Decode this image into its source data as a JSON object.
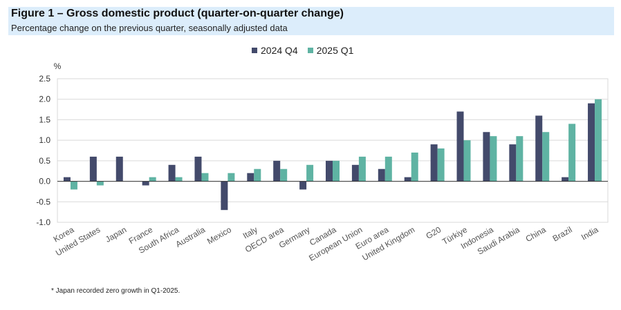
{
  "figure": {
    "title": "Figure 1 – Gross domestic product (quarter-on-quarter change)",
    "subtitle": "Percentage change on the previous quarter, seasonally adjusted data",
    "footnote": "* Japan recorded zero growth in Q1-2025."
  },
  "colors": {
    "series1": "#434a6b",
    "series2": "#5fb3a3",
    "grid": "#d9d9d9",
    "axis": "#333333",
    "header_bg": "#dcedfb"
  },
  "chart_data": {
    "type": "bar",
    "title": "Gross domestic product (quarter-on-quarter change)",
    "ylabel": "%",
    "xlabel": "",
    "ylim": [
      -1.0,
      2.5
    ],
    "yticks": [
      2.5,
      2.0,
      1.5,
      1.0,
      0.5,
      0.0,
      -0.5,
      -1.0
    ],
    "ytick_labels": [
      "2.5",
      "2.0",
      "1.5",
      "1.0",
      "0.5",
      "0.0",
      "-0.5",
      "-1.0"
    ],
    "grid": true,
    "legend_position": "top-center",
    "categories": [
      "Korea",
      "United States",
      "Japan",
      "France",
      "South Africa",
      "Australia",
      "Mexico",
      "Italy",
      "OECD area",
      "Germany",
      "Canada",
      "European Union",
      "Euro area",
      "United Kingdom",
      "G20",
      "Türkiye",
      "Indonesia",
      "Saudi Arabia",
      "China",
      "Brazil",
      "India"
    ],
    "series": [
      {
        "name": "2024 Q4",
        "values": [
          0.1,
          0.6,
          0.6,
          -0.1,
          0.4,
          0.6,
          -0.7,
          0.2,
          0.5,
          -0.2,
          0.5,
          0.4,
          0.3,
          0.1,
          0.9,
          1.7,
          1.2,
          0.9,
          1.6,
          0.1,
          1.9
        ]
      },
      {
        "name": "2025 Q1",
        "values": [
          -0.2,
          -0.1,
          0.0,
          0.1,
          0.1,
          0.2,
          0.2,
          0.3,
          0.3,
          0.4,
          0.5,
          0.6,
          0.6,
          0.7,
          0.8,
          1.0,
          1.1,
          1.1,
          1.2,
          1.4,
          2.0
        ]
      }
    ]
  }
}
